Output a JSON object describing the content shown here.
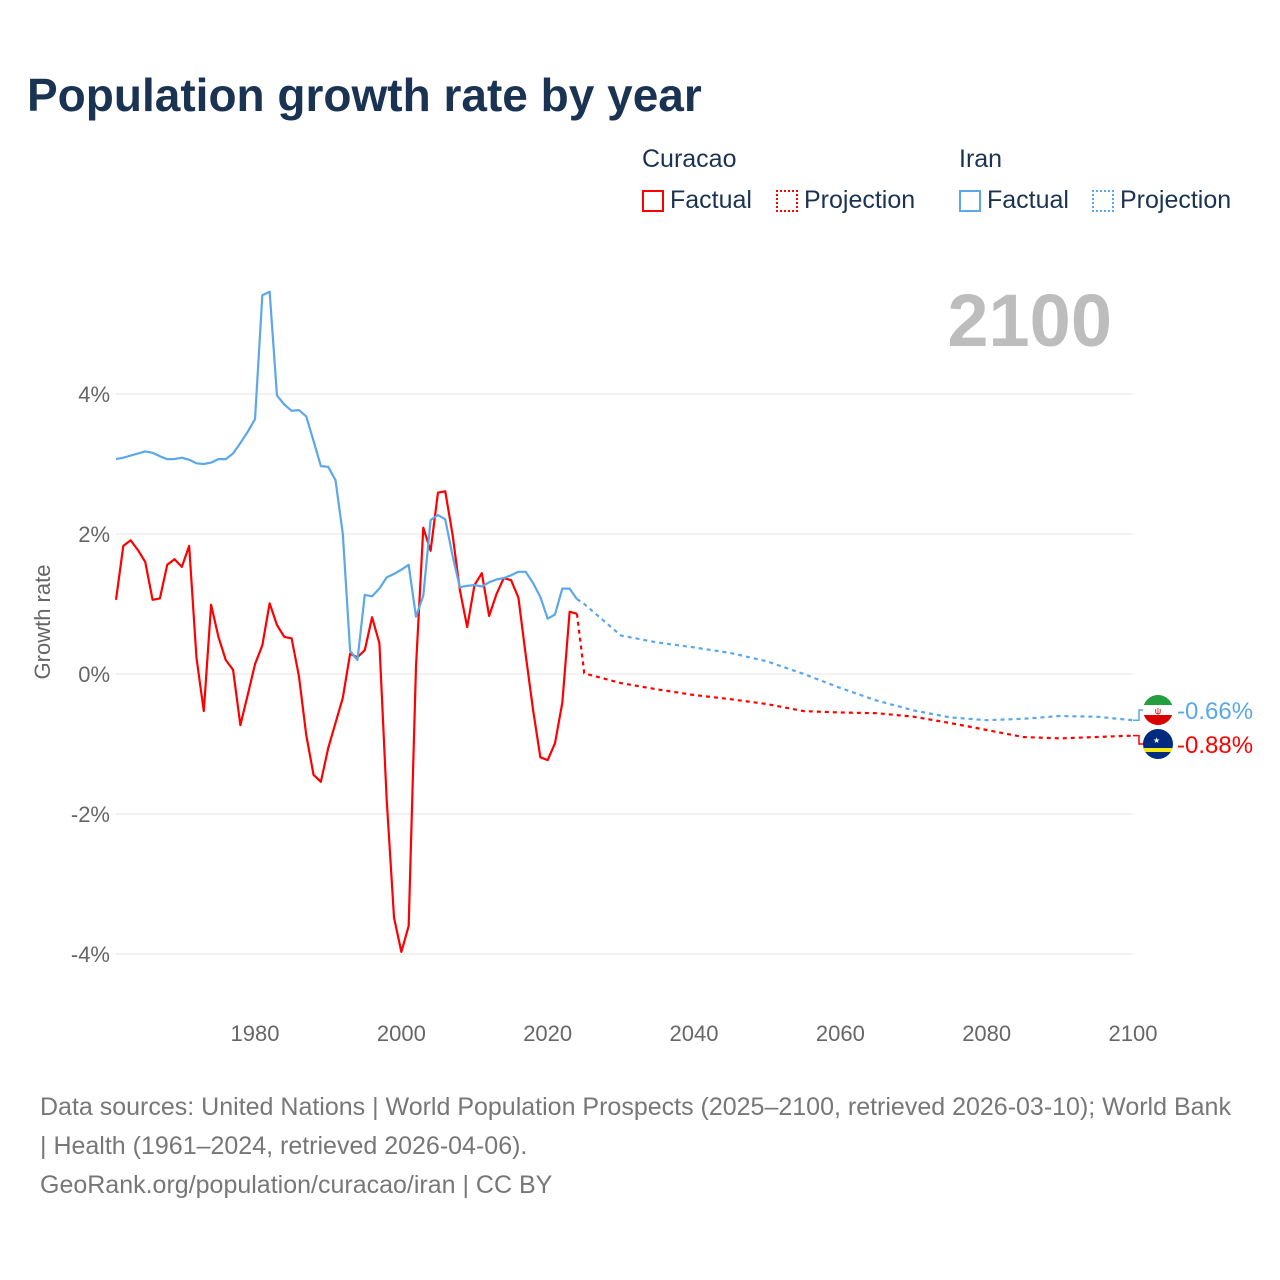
{
  "title": "Population growth rate by year",
  "legend": {
    "groups": [
      {
        "name": "Curacao",
        "items": [
          {
            "label": "Factual",
            "style": "solid"
          },
          {
            "label": "Projection",
            "style": "dotted"
          }
        ],
        "color": "#ff0000"
      },
      {
        "name": "Iran",
        "items": [
          {
            "label": "Factual",
            "style": "solid"
          },
          {
            "label": "Projection",
            "style": "dotted"
          }
        ],
        "color": "#5ba7ea"
      }
    ]
  },
  "year_label": "2100",
  "footer": {
    "sources": "Data sources: United Nations | World Population Prospects (2025–2100, retrieved 2026-03-10); World Bank | Health (1961–2024, retrieved 2026-04-06).",
    "credit": "GeoRank.org/population/curacao/iran | CC BY"
  },
  "chart_data": {
    "type": "line",
    "title": "Population growth rate by year",
    "ylabel": "Growth rate",
    "xlabel": "",
    "xlim": [
      1961,
      2100
    ],
    "ylim": [
      -4.8,
      5.6
    ],
    "x_ticks": [
      1980,
      2000,
      2020,
      2040,
      2060,
      2080,
      2100
    ],
    "x_tick_labels": [
      "1980",
      "2000",
      "2020",
      "2040",
      "2060",
      "2080",
      "2100"
    ],
    "y_ticks": [
      4,
      2,
      0,
      -2,
      -4
    ],
    "y_tick_labels": [
      "4%",
      "2%",
      "0%",
      "-2%",
      "-4%"
    ],
    "grid": true,
    "series": [
      {
        "name": "Curacao",
        "color": "#ff0000",
        "end_label": "-0.88%",
        "flag": "curacao-flag",
        "factual": {
          "x_start": 1961,
          "values": [
            1.06,
            1.83,
            1.91,
            1.77,
            1.6,
            1.06,
            1.08,
            1.56,
            1.64,
            1.53,
            1.83,
            0.23,
            -0.53,
            0.99,
            0.53,
            0.2,
            0.06,
            -0.73,
            -0.3,
            0.14,
            0.41,
            1.01,
            0.7,
            0.53,
            0.51,
            -0.03,
            -0.87,
            -1.44,
            -1.54,
            -1.06,
            -0.7,
            -0.34,
            0.29,
            0.24,
            0.34,
            0.81,
            0.44,
            -1.8,
            -3.48,
            -3.97,
            -3.6,
            0.1,
            2.09,
            1.76,
            2.59,
            2.61,
            1.99,
            1.2,
            0.67,
            1.27,
            1.44,
            0.83,
            1.14,
            1.37,
            1.34,
            1.09,
            0.27,
            -0.51,
            -1.19,
            -1.23,
            -0.99,
            -0.41,
            0.89,
            0.86
          ]
        },
        "projection": {
          "x": [
            2024,
            2025,
            2030,
            2035,
            2040,
            2045,
            2050,
            2055,
            2060,
            2065,
            2070,
            2075,
            2080,
            2085,
            2090,
            2095,
            2100
          ],
          "values": [
            0.86,
            0.01,
            -0.13,
            -0.22,
            -0.3,
            -0.36,
            -0.43,
            -0.53,
            -0.55,
            -0.56,
            -0.61,
            -0.7,
            -0.8,
            -0.9,
            -0.92,
            -0.9,
            -0.88
          ]
        }
      },
      {
        "name": "Iran",
        "color": "#5ba7ea",
        "end_label": "-0.66%",
        "flag": "iran-flag",
        "factual": {
          "x_start": 1961,
          "values": [
            3.07,
            3.09,
            3.12,
            3.15,
            3.18,
            3.16,
            3.11,
            3.07,
            3.07,
            3.09,
            3.06,
            3.01,
            3.0,
            3.02,
            3.07,
            3.07,
            3.15,
            3.3,
            3.46,
            3.64,
            5.41,
            5.46,
            3.98,
            3.85,
            3.76,
            3.77,
            3.68,
            3.33,
            2.97,
            2.96,
            2.77,
            2.0,
            0.33,
            0.2,
            1.13,
            1.11,
            1.22,
            1.38,
            1.43,
            1.49,
            1.56,
            0.82,
            1.12,
            2.2,
            2.27,
            2.21,
            1.69,
            1.24,
            1.26,
            1.27,
            1.25,
            1.31,
            1.35,
            1.37,
            1.41,
            1.46,
            1.46,
            1.3,
            1.1,
            0.79,
            0.85,
            1.22,
            1.22,
            1.07
          ]
        },
        "projection": {
          "x": [
            2024,
            2025,
            2030,
            2035,
            2040,
            2045,
            2050,
            2055,
            2060,
            2065,
            2070,
            2075,
            2080,
            2085,
            2090,
            2095,
            2100
          ],
          "values": [
            1.07,
            1.0,
            0.55,
            0.45,
            0.38,
            0.3,
            0.18,
            0.0,
            -0.2,
            -0.38,
            -0.52,
            -0.62,
            -0.66,
            -0.64,
            -0.6,
            -0.61,
            -0.66
          ]
        }
      }
    ]
  }
}
